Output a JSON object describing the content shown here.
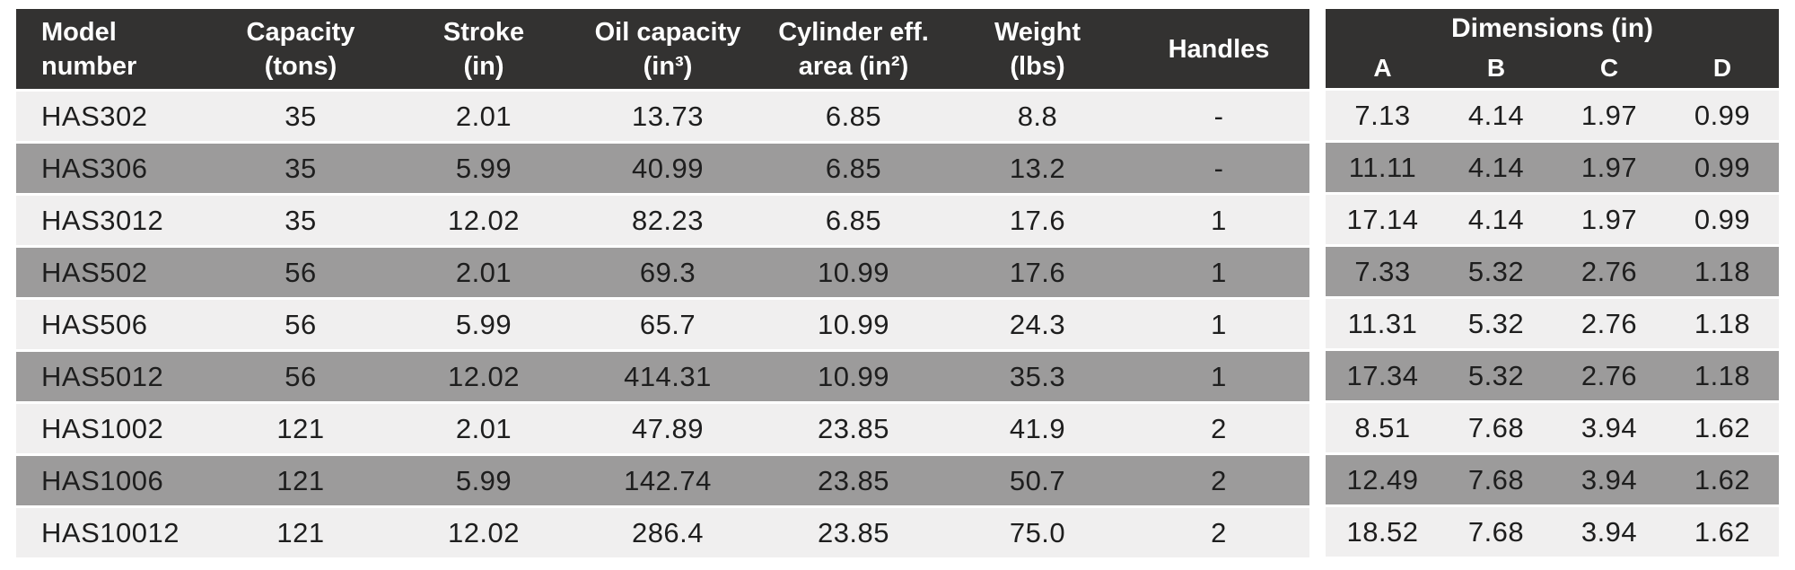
{
  "colors": {
    "header_bg": "#333231",
    "header_text": "#ffffff",
    "row_light_bg": "#f0efef",
    "row_dark_bg": "#9c9b9b",
    "cell_text": "#1e1e1e",
    "page_bg": "#ffffff",
    "row_separator": "#ffffff"
  },
  "main_table": {
    "columns": [
      {
        "line1": "Model",
        "line2": "number"
      },
      {
        "line1": "Capacity",
        "line2": "(tons)"
      },
      {
        "line1": "Stroke",
        "line2": "(in)"
      },
      {
        "line1": "Oil capacity",
        "line2": "(in³)"
      },
      {
        "line1": "Cylinder eff.",
        "line2": "area (in²)"
      },
      {
        "line1": "Weight",
        "line2": "(lbs)"
      },
      {
        "line1": "Handles",
        "line2": ""
      }
    ],
    "rows": [
      [
        "HAS302",
        "35",
        "2.01",
        "13.73",
        "6.85",
        "8.8",
        "-"
      ],
      [
        "HAS306",
        "35",
        "5.99",
        "40.99",
        "6.85",
        "13.2",
        "-"
      ],
      [
        "HAS3012",
        "35",
        "12.02",
        "82.23",
        "6.85",
        "17.6",
        "1"
      ],
      [
        "HAS502",
        "56",
        "2.01",
        "69.3",
        "10.99",
        "17.6",
        "1"
      ],
      [
        "HAS506",
        "56",
        "5.99",
        "65.7",
        "10.99",
        "24.3",
        "1"
      ],
      [
        "HAS5012",
        "56",
        "12.02",
        "414.31",
        "10.99",
        "35.3",
        "1"
      ],
      [
        "HAS1002",
        "121",
        "2.01",
        "47.89",
        "23.85",
        "41.9",
        "2"
      ],
      [
        "HAS1006",
        "121",
        "5.99",
        "142.74",
        "23.85",
        "50.7",
        "2"
      ],
      [
        "HAS10012",
        "121",
        "12.02",
        "286.4",
        "23.85",
        "75.0",
        "2"
      ]
    ]
  },
  "dimensions_table": {
    "title": "Dimensions (in)",
    "columns": [
      "A",
      "B",
      "C",
      "D"
    ],
    "rows": [
      [
        "7.13",
        "4.14",
        "1.97",
        "0.99"
      ],
      [
        "11.11",
        "4.14",
        "1.97",
        "0.99"
      ],
      [
        "17.14",
        "4.14",
        "1.97",
        "0.99"
      ],
      [
        "7.33",
        "5.32",
        "2.76",
        "1.18"
      ],
      [
        "11.31",
        "5.32",
        "2.76",
        "1.18"
      ],
      [
        "17.34",
        "5.32",
        "2.76",
        "1.18"
      ],
      [
        "8.51",
        "7.68",
        "3.94",
        "1.62"
      ],
      [
        "12.49",
        "7.68",
        "3.94",
        "1.62"
      ],
      [
        "18.52",
        "7.68",
        "3.94",
        "1.62"
      ]
    ]
  }
}
